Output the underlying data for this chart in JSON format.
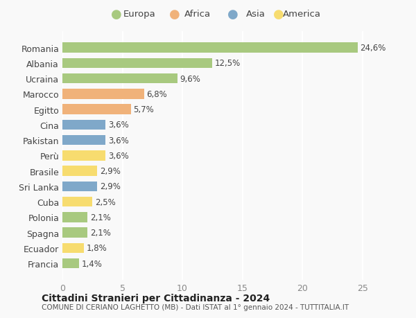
{
  "countries": [
    "Romania",
    "Albania",
    "Ucraina",
    "Marocco",
    "Egitto",
    "Cina",
    "Pakistan",
    "Perù",
    "Brasile",
    "Sri Lanka",
    "Cuba",
    "Polonia",
    "Spagna",
    "Ecuador",
    "Francia"
  ],
  "values": [
    24.6,
    12.5,
    9.6,
    6.8,
    5.7,
    3.6,
    3.6,
    3.6,
    2.9,
    2.9,
    2.5,
    2.1,
    2.1,
    1.8,
    1.4
  ],
  "labels": [
    "24,6%",
    "12,5%",
    "9,6%",
    "6,8%",
    "5,7%",
    "3,6%",
    "3,6%",
    "3,6%",
    "2,9%",
    "2,9%",
    "2,5%",
    "2,1%",
    "2,1%",
    "1,8%",
    "1,4%"
  ],
  "continents": [
    "Europa",
    "Europa",
    "Europa",
    "Africa",
    "Africa",
    "Asia",
    "Asia",
    "America",
    "America",
    "Asia",
    "America",
    "Europa",
    "Europa",
    "America",
    "Europa"
  ],
  "continent_colors": {
    "Europa": "#a8c97f",
    "Africa": "#f0b27a",
    "Asia": "#7fa8c9",
    "America": "#f7dc6f"
  },
  "legend_order": [
    "Europa",
    "Africa",
    "Asia",
    "America"
  ],
  "legend_colors": [
    "#a8c97f",
    "#f0b27a",
    "#7fa8c9",
    "#f7dc6f"
  ],
  "xlim": [
    0,
    26
  ],
  "xticks": [
    0,
    5,
    10,
    15,
    20,
    25
  ],
  "title1": "Cittadini Stranieri per Cittadinanza - 2024",
  "title2": "COMUNE DI CERIANO LAGHETTO (MB) - Dati ISTAT al 1° gennaio 2024 - TUTTITALIA.IT",
  "background_color": "#f9f9f9",
  "grid_color": "#ffffff"
}
